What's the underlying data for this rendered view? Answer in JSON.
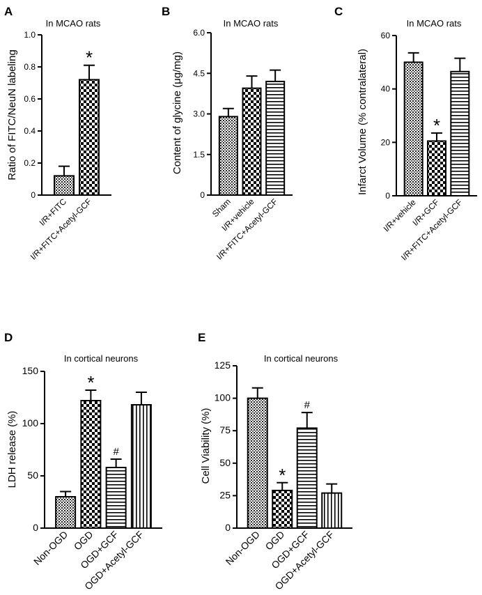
{
  "chart_data": [
    {
      "panel": "A",
      "type": "bar",
      "title": "In MCAO rats",
      "ylabel": "Ratio of FITC/NeuN labeling",
      "xlabel": "",
      "ylim": [
        0,
        1.0
      ],
      "yticks": [
        "0",
        "0.2",
        "0.4",
        "0.6",
        "0.8",
        "1.0"
      ],
      "categories": [
        "I/R+FITC",
        "I/R+FITC+Acetyl-GCF"
      ],
      "values": [
        0.12,
        0.72
      ],
      "errors": [
        0.06,
        0.09
      ],
      "patterns": [
        "dots",
        "checker"
      ],
      "annotations": [
        "",
        "*"
      ]
    },
    {
      "panel": "B",
      "type": "bar",
      "title": "In MCAO rats",
      "ylabel": "Content of glycine (μg/mg)",
      "xlabel": "",
      "ylim": [
        0,
        6.0
      ],
      "yticks": [
        "0",
        "1.5",
        "3.0",
        "4.5",
        "6.0"
      ],
      "categories": [
        "Sham",
        "I/R+vehicle",
        "I/R+FITC+Acetyl-GCF"
      ],
      "values": [
        2.9,
        3.95,
        4.2
      ],
      "errors": [
        0.3,
        0.45,
        0.42
      ],
      "patterns": [
        "dots",
        "checker",
        "hlines"
      ],
      "annotations": [
        "",
        "",
        ""
      ]
    },
    {
      "panel": "C",
      "type": "bar",
      "title": "In MCAO rats",
      "ylabel": "Infarct Volume (% contralateral)",
      "xlabel": "",
      "ylim": [
        0,
        60
      ],
      "yticks": [
        "0",
        "20",
        "40",
        "60"
      ],
      "categories": [
        "I/R+vehicle",
        "I/R+GCF",
        "I/R+FITC+Acetyl-GCF"
      ],
      "values": [
        50,
        20.5,
        46.5
      ],
      "errors": [
        3.5,
        3,
        5
      ],
      "patterns": [
        "dots",
        "checker",
        "hlines"
      ],
      "annotations": [
        "",
        "*",
        ""
      ]
    },
    {
      "panel": "D",
      "type": "bar",
      "title": "In cortical neurons",
      "ylabel": "LDH release (%)",
      "xlabel": "",
      "ylim": [
        0,
        150
      ],
      "yticks": [
        "0",
        "50",
        "100",
        "150"
      ],
      "categories": [
        "Non-OGD",
        "OGD",
        "OGD+GCF",
        "OGD+Acetyl-GCF"
      ],
      "values": [
        30,
        122,
        58,
        118
      ],
      "errors": [
        5,
        10,
        8,
        12
      ],
      "patterns": [
        "dots",
        "checker",
        "hlines",
        "vlines"
      ],
      "annotations": [
        "",
        "*",
        "#",
        ""
      ]
    },
    {
      "panel": "E",
      "type": "bar",
      "title": "In cortical neurons",
      "ylabel": "Cell Viability (%)",
      "xlabel": "",
      "ylim": [
        0,
        125
      ],
      "yticks": [
        "0",
        "25",
        "50",
        "75",
        "100",
        "125"
      ],
      "categories": [
        "Non-OGD",
        "OGD",
        "OGD+GCF",
        "OGD+Acetyl-GCF"
      ],
      "values": [
        100,
        29,
        77,
        27
      ],
      "errors": [
        8,
        6,
        12,
        7
      ],
      "patterns": [
        "dots",
        "checker",
        "hlines",
        "vlines"
      ],
      "annotations": [
        "",
        "*",
        "#",
        ""
      ]
    }
  ]
}
